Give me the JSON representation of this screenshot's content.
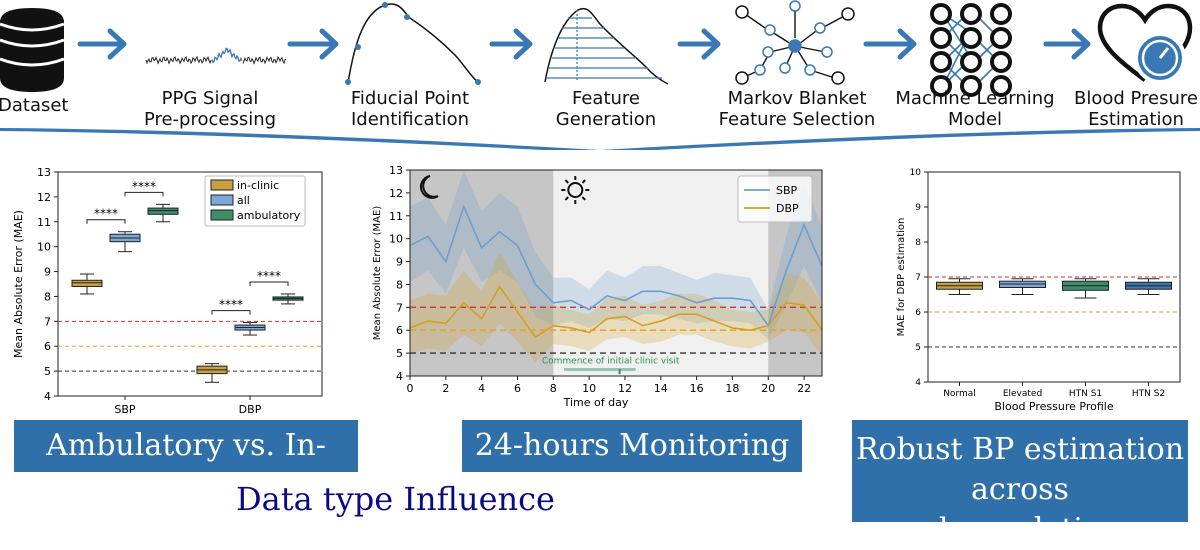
{
  "pipeline": {
    "steps": [
      {
        "label_lines": [
          "Dataset"
        ],
        "icon": "database-icon"
      },
      {
        "label_lines": [
          "PPG Signal",
          "Pre-processing"
        ],
        "icon": "ppg-signal-icon"
      },
      {
        "label_lines": [
          "Fiducial Point",
          "Identification"
        ],
        "icon": "fiducial-curve-icon"
      },
      {
        "label_lines": [
          "Feature",
          "Generation"
        ],
        "icon": "feature-generation-icon"
      },
      {
        "label_lines": [
          "Markov Blanket",
          "Feature Selection"
        ],
        "icon": "markov-blanket-icon"
      },
      {
        "label_lines": [
          "Machine Learning",
          "Model"
        ],
        "icon": "neural-network-icon"
      },
      {
        "label_lines": [
          "Blood Presure",
          "Estimation"
        ],
        "icon": "heart-gauge-icon"
      }
    ],
    "arrow_color": "#3a78b5"
  },
  "panels": {
    "ambulatory": {
      "banner": "Ambulatory vs. In-clinic",
      "chart_data": {
        "type": "box",
        "ylabel": "Mean Absolute Error (MAE)",
        "ylim": [
          4,
          13
        ],
        "yticks": [
          "4",
          "5",
          "6",
          "7",
          "8",
          "9",
          "10",
          "11",
          "12",
          "13"
        ],
        "categories": [
          "SBP",
          "DBP"
        ],
        "legend": [
          "in-clinic",
          "all",
          "ambulatory"
        ],
        "legend_position": "top-right",
        "series_colors": [
          "#c8a040",
          "#7ba8d8",
          "#3e8c6a"
        ],
        "boxes": [
          {
            "category": "SBP",
            "series": "in-clinic",
            "min": 8.1,
            "q1": 8.4,
            "median": 8.55,
            "q3": 8.65,
            "max": 8.9
          },
          {
            "category": "SBP",
            "series": "all",
            "min": 9.8,
            "q1": 10.2,
            "median": 10.35,
            "q3": 10.5,
            "max": 10.6
          },
          {
            "category": "SBP",
            "series": "ambulatory",
            "min": 11.0,
            "q1": 11.3,
            "median": 11.45,
            "q3": 11.55,
            "max": 11.7
          },
          {
            "category": "DBP",
            "series": "in-clinic",
            "min": 4.55,
            "q1": 4.9,
            "median": 5.05,
            "q3": 5.2,
            "max": 5.3
          },
          {
            "category": "DBP",
            "series": "all",
            "min": 6.45,
            "q1": 6.65,
            "median": 6.75,
            "q3": 6.85,
            "max": 6.95
          },
          {
            "category": "DBP",
            "series": "ambulatory",
            "min": 7.7,
            "q1": 7.85,
            "median": 7.92,
            "q3": 7.98,
            "max": 8.1
          }
        ],
        "reference_lines": [
          {
            "y": 7,
            "color": "#d03030"
          },
          {
            "y": 6,
            "color": "#e0a020"
          },
          {
            "y": 5,
            "color": "#333333"
          }
        ],
        "significance": [
          {
            "category": "SBP",
            "from": "in-clinic",
            "to": "all",
            "label": "****"
          },
          {
            "category": "SBP",
            "from": "all",
            "to": "ambulatory",
            "label": "****"
          },
          {
            "category": "DBP",
            "from": "in-clinic",
            "to": "all",
            "label": "****"
          },
          {
            "category": "DBP",
            "from": "all",
            "to": "ambulatory",
            "label": "****"
          }
        ]
      }
    },
    "monitoring": {
      "banner": "24-hours Monitoring",
      "chart_data": {
        "type": "line",
        "ylabel": "Mean Absolute Error (MAE)",
        "xlabel": "Time of day",
        "xlim": [
          0,
          23
        ],
        "ylim": [
          4,
          13
        ],
        "xticks": [
          "0",
          "2",
          "4",
          "6",
          "8",
          "10",
          "12",
          "14",
          "16",
          "18",
          "20",
          "22"
        ],
        "yticks": [
          "4",
          "5",
          "6",
          "7",
          "8",
          "9",
          "10",
          "11",
          "12",
          "13"
        ],
        "night_periods": [
          [
            0,
            8
          ],
          [
            20,
            23
          ]
        ],
        "legend_position": "top-right",
        "annotation": "Commence of initial clinic visit",
        "annotation_x": 11.7,
        "x": [
          0,
          1,
          2,
          3,
          4,
          5,
          6,
          7,
          8,
          9,
          10,
          11,
          12,
          13,
          14,
          15,
          16,
          17,
          18,
          19,
          20,
          21,
          22,
          23
        ],
        "series": [
          {
            "name": "SBP",
            "color": "#6a9fd0",
            "values": [
              9.7,
              10.1,
              9.0,
              11.4,
              9.6,
              10.3,
              9.7,
              8.0,
              7.2,
              7.3,
              6.9,
              7.5,
              7.3,
              7.7,
              7.7,
              7.5,
              7.2,
              7.4,
              7.4,
              7.3,
              6.2,
              8.6,
              10.6,
              8.8
            ],
            "lower": [
              8.1,
              8.6,
              7.6,
              9.6,
              8.1,
              8.6,
              8.1,
              6.6,
              6.2,
              6.4,
              6.1,
              6.5,
              6.4,
              6.7,
              6.7,
              6.5,
              6.3,
              6.4,
              6.4,
              6.3,
              5.6,
              7.1,
              8.8,
              7.2
            ],
            "upper": [
              11.4,
              11.8,
              10.6,
              13.0,
              11.2,
              12.0,
              11.4,
              9.4,
              8.3,
              8.3,
              7.8,
              8.6,
              8.3,
              8.8,
              8.8,
              8.5,
              8.2,
              8.5,
              8.4,
              8.3,
              6.9,
              10.1,
              12.5,
              10.5
            ]
          },
          {
            "name": "DBP",
            "color": "#d4a020",
            "values": [
              6.1,
              6.4,
              6.3,
              7.2,
              6.5,
              7.9,
              6.8,
              5.7,
              6.2,
              6.1,
              5.9,
              6.5,
              6.6,
              6.2,
              6.4,
              6.7,
              6.7,
              6.4,
              6.1,
              6.0,
              6.2,
              7.2,
              7.1,
              6.0
            ],
            "lower": [
              5.0,
              5.2,
              5.1,
              5.8,
              5.3,
              6.3,
              5.5,
              4.6,
              5.4,
              5.3,
              5.1,
              5.6,
              5.7,
              5.4,
              5.5,
              5.8,
              5.8,
              5.5,
              5.3,
              5.2,
              5.5,
              6.0,
              5.9,
              4.9
            ],
            "upper": [
              7.3,
              7.6,
              7.5,
              8.6,
              7.7,
              9.4,
              8.1,
              6.9,
              7.1,
              6.9,
              6.7,
              7.4,
              7.5,
              7.1,
              7.3,
              7.6,
              7.6,
              7.3,
              6.9,
              6.8,
              6.9,
              8.5,
              8.3,
              7.2
            ]
          }
        ],
        "reference_lines": [
          {
            "y": 7,
            "color": "#d03030"
          },
          {
            "y": 6,
            "color": "#e0a020"
          },
          {
            "y": 5,
            "color": "#333333"
          }
        ]
      }
    },
    "robust": {
      "banner_lines": [
        "Robust BP estimation",
        "across subpopulations"
      ],
      "chart_data": {
        "type": "box",
        "ylabel": "MAE for DBP estimation",
        "xlabel": "Blood Pressure Profile",
        "ylim": [
          4,
          10
        ],
        "yticks": [
          "4",
          "5",
          "6",
          "7",
          "8",
          "9",
          "10"
        ],
        "categories": [
          "Normal",
          "Elevated",
          "HTN S1",
          "HTN S2"
        ],
        "colors": [
          "#c8a040",
          "#7ba8d8",
          "#3e8c6a",
          "#3a78b5"
        ],
        "boxes": [
          {
            "category": "Normal",
            "min": 6.5,
            "q1": 6.65,
            "median": 6.75,
            "q3": 6.85,
            "max": 6.95
          },
          {
            "category": "Elevated",
            "min": 6.5,
            "q1": 6.7,
            "median": 6.8,
            "q3": 6.88,
            "max": 6.95
          },
          {
            "category": "HTN S1",
            "min": 6.4,
            "q1": 6.62,
            "median": 6.75,
            "q3": 6.88,
            "max": 6.95
          },
          {
            "category": "HTN S2",
            "min": 6.5,
            "q1": 6.65,
            "median": 6.75,
            "q3": 6.85,
            "max": 6.95
          }
        ],
        "reference_lines": [
          {
            "y": 7,
            "color": "#d03030"
          },
          {
            "y": 6,
            "color": "#e0a020"
          },
          {
            "y": 5,
            "color": "#333333"
          }
        ]
      }
    }
  },
  "footer": {
    "subtitle": "Data type Influence"
  }
}
